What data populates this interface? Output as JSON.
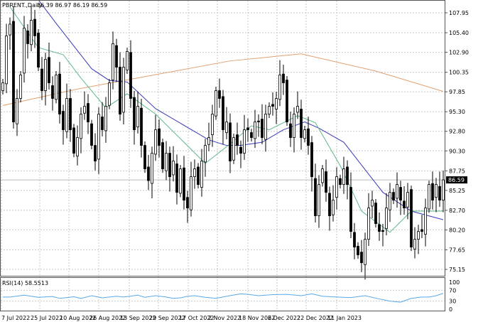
{
  "chart_data": {
    "type": "candlestick",
    "title": "PBRENT.,Daily",
    "ohlc_label": "86.39 86.97 86.19 86.59",
    "last_price": "86.59",
    "price_ticks": [
      "107.95",
      "105.40",
      "102.90",
      "100.35",
      "97.85",
      "95.30",
      "92.80",
      "90.30",
      "87.75",
      "85.25",
      "82.70",
      "80.20",
      "77.65",
      "75.15"
    ],
    "ylim": [
      75.15,
      107.95
    ],
    "date_ticks": [
      "7 Jul 2022",
      "25 Jul 2022",
      "10 Aug 2022",
      "26 Aug 2022",
      "13 Sep 2022",
      "29 Sep 2022",
      "17 Oct 2022",
      "2 Nov 2022",
      "18 Nov 2022",
      "6 Dec 2022",
      "22 Dec 2022",
      "11 Jan 2023"
    ],
    "close": [
      99,
      105,
      106.5,
      94,
      97,
      100,
      106,
      104,
      107,
      105,
      101,
      98,
      102,
      99,
      97,
      100,
      95,
      93,
      97,
      93,
      90,
      92,
      95,
      96,
      94,
      91,
      89,
      95,
      93,
      96,
      99,
      104,
      101,
      95,
      101,
      103,
      97,
      93,
      96,
      91,
      88,
      86.5,
      90,
      93,
      91,
      88,
      90,
      87,
      89,
      85,
      88,
      84,
      83,
      87,
      88,
      86,
      89,
      91,
      92,
      95,
      98,
      97,
      93,
      94,
      89,
      92,
      91,
      90,
      93,
      93,
      92,
      94,
      94,
      92,
      95,
      96,
      96,
      97,
      100,
      99,
      94,
      92,
      95,
      96,
      92,
      93,
      91,
      87,
      82,
      86,
      88,
      85,
      82,
      84,
      87,
      86,
      88,
      86,
      80,
      78,
      77,
      76,
      79,
      83,
      84,
      81,
      80,
      80,
      83,
      85,
      84,
      86,
      84,
      83,
      85,
      78,
      79,
      80,
      80,
      83,
      86,
      84,
      86,
      84,
      86.59
    ],
    "ma_fast": [
      [
        2,
        108.7
      ],
      [
        10,
        103.5
      ],
      [
        17,
        102.6
      ],
      [
        22,
        99.6
      ],
      [
        29,
        95.8
      ],
      [
        35,
        97.6
      ],
      [
        43,
        95
      ],
      [
        51,
        91.4
      ],
      [
        57,
        88.7
      ],
      [
        64,
        91.2
      ],
      [
        70,
        93.5
      ],
      [
        75,
        93
      ],
      [
        83,
        94.8
      ],
      [
        88,
        93.9
      ],
      [
        95,
        88.4
      ],
      [
        101,
        82.6
      ],
      [
        109,
        79.9
      ],
      [
        115,
        82.6
      ],
      [
        124,
        82.6
      ]
    ],
    "ma_mid": [
      [
        10,
        109.6
      ],
      [
        15,
        106.6
      ],
      [
        25,
        100.8
      ],
      [
        30,
        99.3
      ],
      [
        35,
        99.1
      ],
      [
        43,
        95.7
      ],
      [
        58,
        91.7
      ],
      [
        63,
        91
      ],
      [
        67,
        91
      ],
      [
        73,
        91.4
      ],
      [
        79,
        93
      ],
      [
        85,
        94
      ],
      [
        89,
        93.2
      ],
      [
        96,
        91.4
      ],
      [
        107,
        85
      ],
      [
        115,
        82.6
      ],
      [
        124,
        81.5
      ]
    ],
    "ma_slow": [
      [
        0,
        96.1
      ],
      [
        21,
        98.2
      ],
      [
        64,
        101.8
      ],
      [
        84,
        102.7
      ],
      [
        105,
        100.5
      ],
      [
        124,
        97.9
      ]
    ],
    "rsi": {
      "label": "RSI(14) 58.5513",
      "ticks": [
        "100",
        "70",
        "30",
        "0"
      ],
      "values": [
        [
          0,
          45
        ],
        [
          2,
          45
        ],
        [
          6,
          52
        ],
        [
          10,
          44
        ],
        [
          14,
          47
        ],
        [
          16,
          40
        ],
        [
          18,
          43
        ],
        [
          20,
          46
        ],
        [
          22,
          40
        ],
        [
          25,
          50
        ],
        [
          28,
          42
        ],
        [
          32,
          48
        ],
        [
          34,
          45
        ],
        [
          38,
          52
        ],
        [
          40,
          44
        ],
        [
          43,
          50
        ],
        [
          46,
          45
        ],
        [
          48,
          40
        ],
        [
          50,
          42
        ],
        [
          52,
          48
        ],
        [
          54,
          50
        ],
        [
          57,
          44
        ],
        [
          60,
          40
        ],
        [
          63,
          48
        ],
        [
          67,
          57
        ],
        [
          69,
          55
        ],
        [
          72,
          50
        ],
        [
          76,
          54
        ],
        [
          80,
          55
        ],
        [
          84,
          50
        ],
        [
          87,
          57
        ],
        [
          90,
          48
        ],
        [
          94,
          45
        ],
        [
          98,
          43
        ],
        [
          102,
          50
        ],
        [
          106,
          38
        ],
        [
          109,
          30
        ],
        [
          112,
          26
        ],
        [
          115,
          40
        ],
        [
          118,
          45
        ],
        [
          120,
          45
        ],
        [
          122,
          50
        ],
        [
          124,
          58.55
        ]
      ]
    },
    "colors": {
      "up": "#ffffff",
      "down": "#000000",
      "ma_fast": "#5fb98a",
      "ma_mid": "#3a3ab8",
      "ma_slow": "#e0a070",
      "rsi": "#5aa8e6",
      "grid": "#c8c8c8"
    }
  }
}
